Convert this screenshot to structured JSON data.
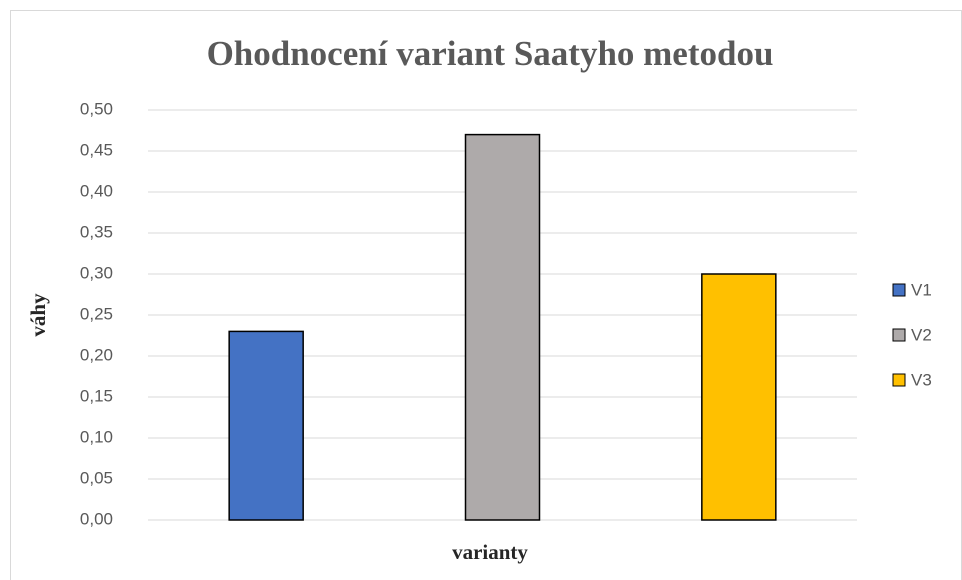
{
  "chart_data": {
    "type": "bar",
    "title": "Ohodnocení variant Saatyho metodou",
    "x_label": "varianty",
    "y_label": "váhy",
    "series": [
      {
        "name": "V1",
        "color": "#4472c4",
        "values": [
          0.23
        ]
      },
      {
        "name": "V2",
        "color": "#aeaaaa",
        "values": [
          0.47
        ]
      },
      {
        "name": "V3",
        "color": "#ffc000",
        "values": [
          0.3
        ]
      }
    ],
    "ylim": [
      0,
      0.5
    ],
    "yticks": [
      {
        "value": 0,
        "label": "0,00"
      },
      {
        "value": 0.05,
        "label": "0,05"
      },
      {
        "value": 0.1,
        "label": "0,10"
      },
      {
        "value": 0.15,
        "label": "0,15"
      },
      {
        "value": 0.2,
        "label": "0,20"
      },
      {
        "value": 0.25,
        "label": "0,25"
      },
      {
        "value": 0.3,
        "label": "0,30"
      },
      {
        "value": 0.35,
        "label": "0,35"
      },
      {
        "value": 0.4,
        "label": "0,40"
      },
      {
        "value": 0.45,
        "label": "0,45"
      },
      {
        "value": 0.5,
        "label": "0,50"
      }
    ],
    "grid": true,
    "legend": "right"
  }
}
